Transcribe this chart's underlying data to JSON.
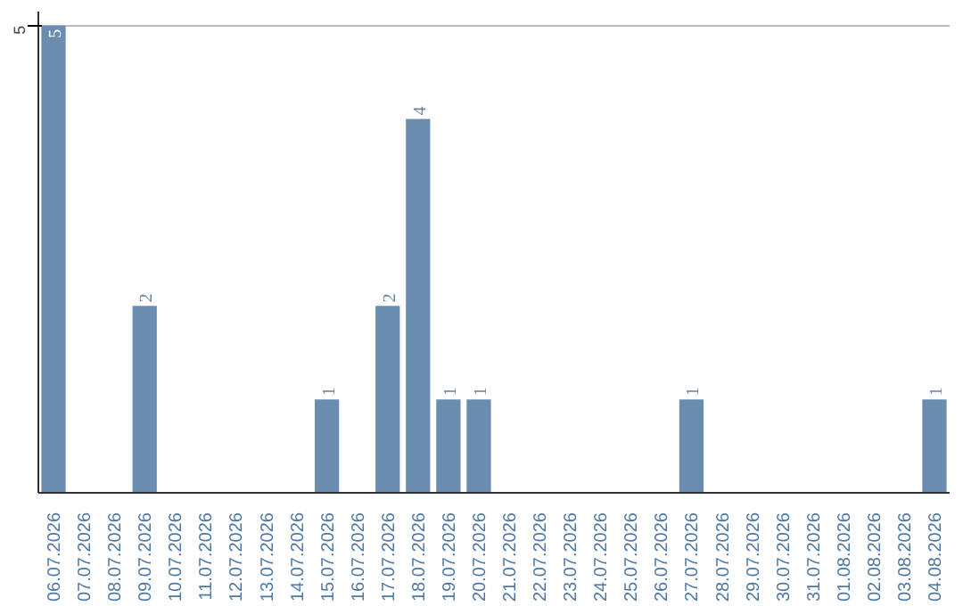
{
  "chart_data": {
    "type": "bar",
    "categories": [
      "06.07.2026",
      "07.07.2026",
      "08.07.2026",
      "09.07.2026",
      "10.07.2026",
      "11.07.2026",
      "12.07.2026",
      "13.07.2026",
      "14.07.2026",
      "15.07.2026",
      "16.07.2026",
      "17.07.2026",
      "18.07.2026",
      "19.07.2026",
      "20.07.2026",
      "21.07.2026",
      "22.07.2026",
      "23.07.2026",
      "24.07.2026",
      "25.07.2026",
      "26.07.2026",
      "27.07.2026",
      "28.07.2026",
      "29.07.2026",
      "30.07.2026",
      "31.07.2026",
      "01.08.2026",
      "02.08.2026",
      "03.08.2026",
      "04.08.2026"
    ],
    "values": [
      5,
      0,
      0,
      2,
      0,
      0,
      0,
      0,
      0,
      1,
      0,
      2,
      4,
      1,
      1,
      0,
      0,
      0,
      0,
      0,
      0,
      1,
      0,
      0,
      0,
      0,
      0,
      0,
      0,
      1
    ],
    "value_labels": [
      "5",
      null,
      null,
      "2",
      null,
      null,
      null,
      null,
      null,
      "1",
      null,
      "2",
      "4",
      "1",
      "1",
      null,
      null,
      null,
      null,
      null,
      null,
      "1",
      null,
      null,
      null,
      null,
      null,
      null,
      null,
      "1"
    ],
    "color": "#6a8caf",
    "ylim": [
      0,
      5.15
    ],
    "yticks": [
      5
    ],
    "grid": "y"
  }
}
